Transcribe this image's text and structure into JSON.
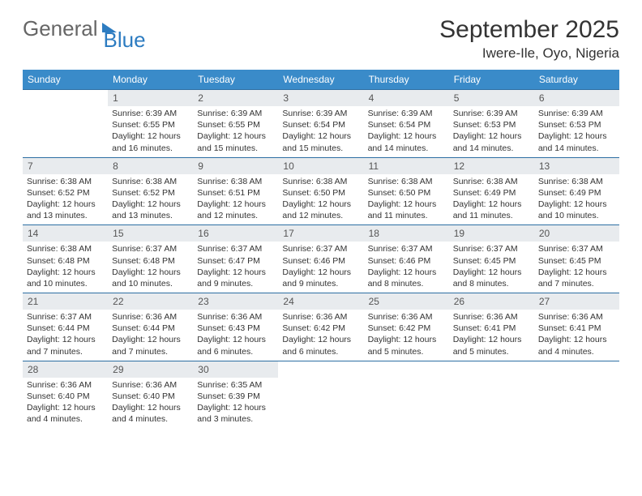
{
  "branding": {
    "word1": "General",
    "word2": "Blue"
  },
  "title": {
    "month": "September 2025",
    "location": "Iwere-Ile, Oyo, Nigeria"
  },
  "colors": {
    "header_bg": "#3a8bc9",
    "header_text": "#ffffff",
    "daynum_bg": "#e8ebee",
    "row_border": "#2d6fa3",
    "logo_blue": "#2d7cc1"
  },
  "weekdays": [
    "Sunday",
    "Monday",
    "Tuesday",
    "Wednesday",
    "Thursday",
    "Friday",
    "Saturday"
  ],
  "grid": [
    [
      null,
      {
        "n": "1",
        "l1": "Sunrise: 6:39 AM",
        "l2": "Sunset: 6:55 PM",
        "l3": "Daylight: 12 hours",
        "l4": "and 16 minutes."
      },
      {
        "n": "2",
        "l1": "Sunrise: 6:39 AM",
        "l2": "Sunset: 6:55 PM",
        "l3": "Daylight: 12 hours",
        "l4": "and 15 minutes."
      },
      {
        "n": "3",
        "l1": "Sunrise: 6:39 AM",
        "l2": "Sunset: 6:54 PM",
        "l3": "Daylight: 12 hours",
        "l4": "and 15 minutes."
      },
      {
        "n": "4",
        "l1": "Sunrise: 6:39 AM",
        "l2": "Sunset: 6:54 PM",
        "l3": "Daylight: 12 hours",
        "l4": "and 14 minutes."
      },
      {
        "n": "5",
        "l1": "Sunrise: 6:39 AM",
        "l2": "Sunset: 6:53 PM",
        "l3": "Daylight: 12 hours",
        "l4": "and 14 minutes."
      },
      {
        "n": "6",
        "l1": "Sunrise: 6:39 AM",
        "l2": "Sunset: 6:53 PM",
        "l3": "Daylight: 12 hours",
        "l4": "and 14 minutes."
      }
    ],
    [
      {
        "n": "7",
        "l1": "Sunrise: 6:38 AM",
        "l2": "Sunset: 6:52 PM",
        "l3": "Daylight: 12 hours",
        "l4": "and 13 minutes."
      },
      {
        "n": "8",
        "l1": "Sunrise: 6:38 AM",
        "l2": "Sunset: 6:52 PM",
        "l3": "Daylight: 12 hours",
        "l4": "and 13 minutes."
      },
      {
        "n": "9",
        "l1": "Sunrise: 6:38 AM",
        "l2": "Sunset: 6:51 PM",
        "l3": "Daylight: 12 hours",
        "l4": "and 12 minutes."
      },
      {
        "n": "10",
        "l1": "Sunrise: 6:38 AM",
        "l2": "Sunset: 6:50 PM",
        "l3": "Daylight: 12 hours",
        "l4": "and 12 minutes."
      },
      {
        "n": "11",
        "l1": "Sunrise: 6:38 AM",
        "l2": "Sunset: 6:50 PM",
        "l3": "Daylight: 12 hours",
        "l4": "and 11 minutes."
      },
      {
        "n": "12",
        "l1": "Sunrise: 6:38 AM",
        "l2": "Sunset: 6:49 PM",
        "l3": "Daylight: 12 hours",
        "l4": "and 11 minutes."
      },
      {
        "n": "13",
        "l1": "Sunrise: 6:38 AM",
        "l2": "Sunset: 6:49 PM",
        "l3": "Daylight: 12 hours",
        "l4": "and 10 minutes."
      }
    ],
    [
      {
        "n": "14",
        "l1": "Sunrise: 6:38 AM",
        "l2": "Sunset: 6:48 PM",
        "l3": "Daylight: 12 hours",
        "l4": "and 10 minutes."
      },
      {
        "n": "15",
        "l1": "Sunrise: 6:37 AM",
        "l2": "Sunset: 6:48 PM",
        "l3": "Daylight: 12 hours",
        "l4": "and 10 minutes."
      },
      {
        "n": "16",
        "l1": "Sunrise: 6:37 AM",
        "l2": "Sunset: 6:47 PM",
        "l3": "Daylight: 12 hours",
        "l4": "and 9 minutes."
      },
      {
        "n": "17",
        "l1": "Sunrise: 6:37 AM",
        "l2": "Sunset: 6:46 PM",
        "l3": "Daylight: 12 hours",
        "l4": "and 9 minutes."
      },
      {
        "n": "18",
        "l1": "Sunrise: 6:37 AM",
        "l2": "Sunset: 6:46 PM",
        "l3": "Daylight: 12 hours",
        "l4": "and 8 minutes."
      },
      {
        "n": "19",
        "l1": "Sunrise: 6:37 AM",
        "l2": "Sunset: 6:45 PM",
        "l3": "Daylight: 12 hours",
        "l4": "and 8 minutes."
      },
      {
        "n": "20",
        "l1": "Sunrise: 6:37 AM",
        "l2": "Sunset: 6:45 PM",
        "l3": "Daylight: 12 hours",
        "l4": "and 7 minutes."
      }
    ],
    [
      {
        "n": "21",
        "l1": "Sunrise: 6:37 AM",
        "l2": "Sunset: 6:44 PM",
        "l3": "Daylight: 12 hours",
        "l4": "and 7 minutes."
      },
      {
        "n": "22",
        "l1": "Sunrise: 6:36 AM",
        "l2": "Sunset: 6:44 PM",
        "l3": "Daylight: 12 hours",
        "l4": "and 7 minutes."
      },
      {
        "n": "23",
        "l1": "Sunrise: 6:36 AM",
        "l2": "Sunset: 6:43 PM",
        "l3": "Daylight: 12 hours",
        "l4": "and 6 minutes."
      },
      {
        "n": "24",
        "l1": "Sunrise: 6:36 AM",
        "l2": "Sunset: 6:42 PM",
        "l3": "Daylight: 12 hours",
        "l4": "and 6 minutes."
      },
      {
        "n": "25",
        "l1": "Sunrise: 6:36 AM",
        "l2": "Sunset: 6:42 PM",
        "l3": "Daylight: 12 hours",
        "l4": "and 5 minutes."
      },
      {
        "n": "26",
        "l1": "Sunrise: 6:36 AM",
        "l2": "Sunset: 6:41 PM",
        "l3": "Daylight: 12 hours",
        "l4": "and 5 minutes."
      },
      {
        "n": "27",
        "l1": "Sunrise: 6:36 AM",
        "l2": "Sunset: 6:41 PM",
        "l3": "Daylight: 12 hours",
        "l4": "and 4 minutes."
      }
    ],
    [
      {
        "n": "28",
        "l1": "Sunrise: 6:36 AM",
        "l2": "Sunset: 6:40 PM",
        "l3": "Daylight: 12 hours",
        "l4": "and 4 minutes."
      },
      {
        "n": "29",
        "l1": "Sunrise: 6:36 AM",
        "l2": "Sunset: 6:40 PM",
        "l3": "Daylight: 12 hours",
        "l4": "and 4 minutes."
      },
      {
        "n": "30",
        "l1": "Sunrise: 6:35 AM",
        "l2": "Sunset: 6:39 PM",
        "l3": "Daylight: 12 hours",
        "l4": "and 3 minutes."
      },
      null,
      null,
      null,
      null
    ]
  ]
}
